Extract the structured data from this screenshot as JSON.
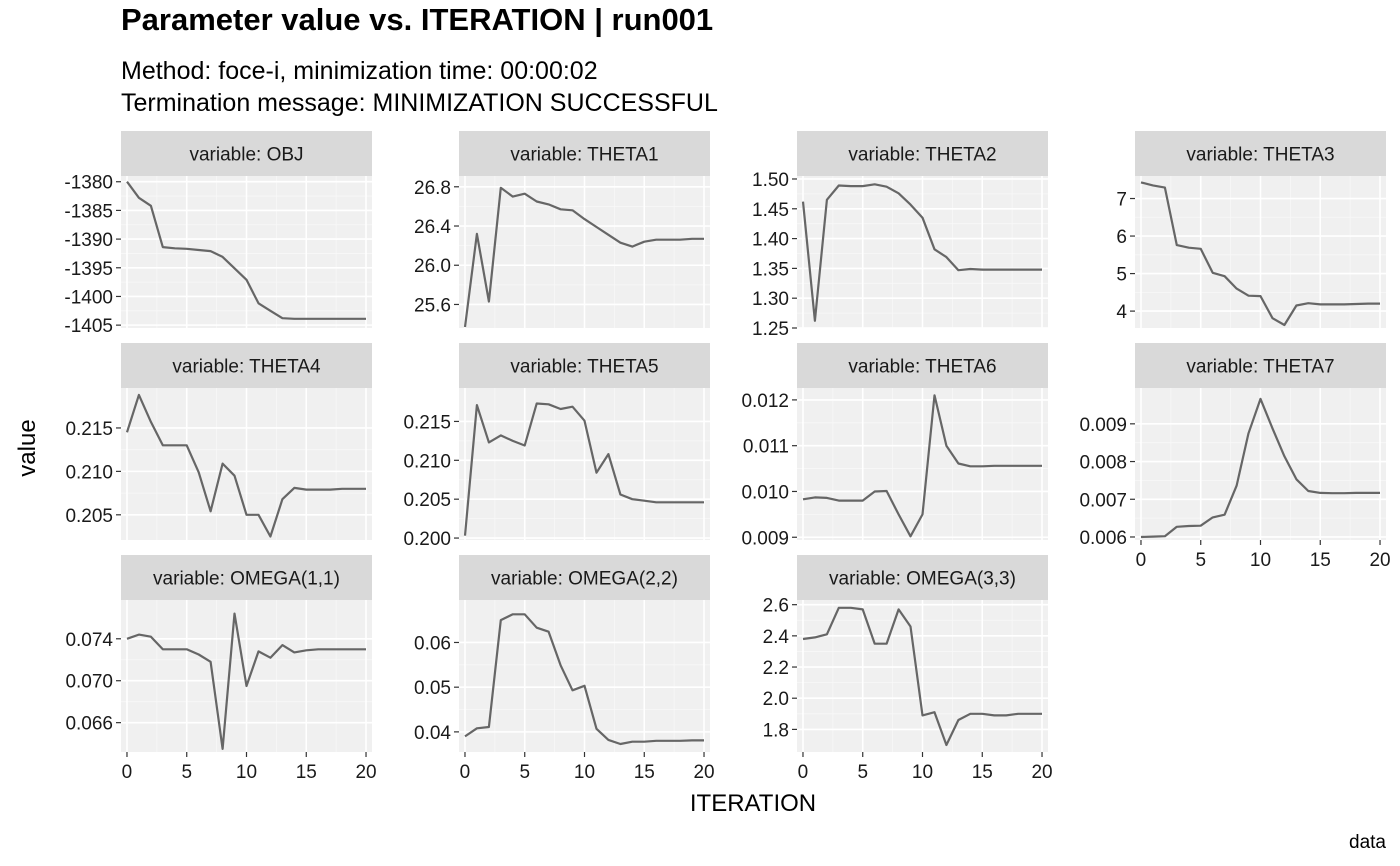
{
  "chart_data": {
    "type": "line",
    "title": "Parameter value vs. ITERATION | run001",
    "subtitle_lines": [
      "Method: foce-i, minimization time: 00:00:02",
      "Termination message: MINIMIZATION SUCCESSFUL"
    ],
    "xlabel": "ITERATION",
    "ylabel": "value",
    "caption": "data",
    "colors": {
      "line": "#666666",
      "panel_bg": "#f0f0f0",
      "strip_bg": "#d9d9d9",
      "grid_major": "#ffffff",
      "grid_minor": "#f8f8f8"
    },
    "grid": true,
    "x": [
      0,
      1,
      2,
      3,
      4,
      5,
      6,
      7,
      8,
      9,
      10,
      11,
      12,
      13,
      14,
      15,
      16,
      17,
      18,
      19,
      20
    ],
    "xticks": [
      0,
      5,
      10,
      15,
      20
    ],
    "xlim": [
      -0.5,
      20.5
    ],
    "panels": [
      {
        "strip": "variable: OBJ",
        "ylim": [
          -1405.5,
          -1379
        ],
        "yticks": [
          -1380,
          -1385,
          -1390,
          -1395,
          -1400,
          -1405
        ],
        "ytick_labels": [
          "-1380",
          "-1385",
          "-1390",
          "-1395",
          "-1400",
          "-1405"
        ],
        "values": [
          -1380,
          -1382.8,
          -1384.2,
          -1391.4,
          -1391.6,
          -1391.7,
          -1391.9,
          -1392.1,
          -1393.1,
          -1395.1,
          -1397.1,
          -1401.2,
          -1402.5,
          -1403.8,
          -1403.9,
          -1403.9,
          -1403.9,
          -1403.9,
          -1403.9,
          -1403.9,
          -1403.9
        ]
      },
      {
        "strip": "variable: THETA1",
        "ylim": [
          25.36,
          26.91
        ],
        "yticks": [
          25.6,
          26.0,
          26.4,
          26.8
        ],
        "ytick_labels": [
          "25.6",
          "26.0",
          "26.4",
          "26.8"
        ],
        "values": [
          25.37,
          26.32,
          25.63,
          26.79,
          26.7,
          26.73,
          26.65,
          26.62,
          26.57,
          26.56,
          26.47,
          26.39,
          26.31,
          26.23,
          26.19,
          26.24,
          26.26,
          26.26,
          26.26,
          26.27,
          26.27
        ]
      },
      {
        "strip": "variable: THETA2",
        "ylim": [
          1.25,
          1.505
        ],
        "yticks": [
          1.25,
          1.3,
          1.35,
          1.4,
          1.45,
          1.5
        ],
        "ytick_labels": [
          "1.25",
          "1.30",
          "1.35",
          "1.40",
          "1.45",
          "1.50"
        ],
        "values": [
          1.462,
          1.262,
          1.465,
          1.489,
          1.488,
          1.488,
          1.491,
          1.487,
          1.476,
          1.457,
          1.435,
          1.382,
          1.369,
          1.347,
          1.349,
          1.348,
          1.348,
          1.348,
          1.348,
          1.348,
          1.348
        ]
      },
      {
        "strip": "variable: THETA3",
        "ylim": [
          3.55,
          7.6
        ],
        "yticks": [
          4,
          5,
          6,
          7
        ],
        "ytick_labels": [
          "4",
          "5",
          "6",
          "7"
        ],
        "values": [
          7.43,
          7.35,
          7.29,
          5.76,
          5.69,
          5.66,
          5.02,
          4.93,
          4.6,
          4.41,
          4.4,
          3.81,
          3.63,
          4.15,
          4.21,
          4.18,
          4.18,
          4.18,
          4.19,
          4.2,
          4.2
        ]
      },
      {
        "strip": "variable: THETA4",
        "ylim": [
          0.2021,
          0.2196
        ],
        "yticks": [
          0.205,
          0.21,
          0.215
        ],
        "ytick_labels": [
          "0.205",
          "0.210",
          "0.215"
        ],
        "values": [
          0.2145,
          0.2188,
          0.2157,
          0.213,
          0.213,
          0.213,
          0.2099,
          0.2054,
          0.2109,
          0.2095,
          0.205,
          0.205,
          0.2025,
          0.2068,
          0.2081,
          0.2079,
          0.2079,
          0.2079,
          0.208,
          0.208,
          0.208
        ]
      },
      {
        "strip": "variable: THETA5",
        "ylim": [
          0.19975,
          0.2193
        ],
        "yticks": [
          0.2,
          0.205,
          0.21,
          0.215
        ],
        "ytick_labels": [
          "0.200",
          "0.205",
          "0.210",
          "0.215"
        ],
        "values": [
          0.2003,
          0.2171,
          0.2123,
          0.2132,
          0.2125,
          0.2119,
          0.2173,
          0.2172,
          0.2166,
          0.2169,
          0.2151,
          0.2084,
          0.2108,
          0.2056,
          0.205,
          0.2048,
          0.2046,
          0.2046,
          0.2046,
          0.2046,
          0.2046
        ]
      },
      {
        "strip": "variable: THETA6",
        "ylim": [
          0.00894,
          0.01226
        ],
        "yticks": [
          0.009,
          0.01,
          0.011,
          0.012
        ],
        "ytick_labels": [
          "0.009",
          "0.010",
          "0.011",
          "0.012"
        ],
        "values": [
          0.00983,
          0.00987,
          0.00986,
          0.0098,
          0.0098,
          0.0098,
          0.01,
          0.01001,
          0.0095,
          0.00902,
          0.0095,
          0.0121,
          0.011,
          0.01061,
          0.01055,
          0.01055,
          0.01056,
          0.01056,
          0.01056,
          0.01056,
          0.01056
        ]
      },
      {
        "strip": "variable: THETA7",
        "ylim": [
          0.00592,
          0.00995
        ],
        "yticks": [
          0.006,
          0.007,
          0.008,
          0.009
        ],
        "ytick_labels": [
          "0.006",
          "0.007",
          "0.008",
          "0.009"
        ],
        "values": [
          0.006,
          0.00601,
          0.00602,
          0.00627,
          0.00629,
          0.0063,
          0.00652,
          0.00659,
          0.00736,
          0.00875,
          0.00966,
          0.00888,
          0.00814,
          0.00753,
          0.00722,
          0.00717,
          0.00716,
          0.00716,
          0.00717,
          0.00717,
          0.00717
        ]
      },
      {
        "strip": "variable: OMEGA(1,1)",
        "ylim": [
          0.0632,
          0.0777
        ],
        "yticks": [
          0.066,
          0.07,
          0.074
        ],
        "ytick_labels": [
          "0.066",
          "0.070",
          "0.074"
        ],
        "values": [
          0.074,
          0.0744,
          0.0742,
          0.073,
          0.073,
          0.073,
          0.0725,
          0.0718,
          0.0635,
          0.0764,
          0.0695,
          0.0728,
          0.0722,
          0.0734,
          0.0727,
          0.0729,
          0.073,
          0.073,
          0.073,
          0.073,
          0.073
        ]
      },
      {
        "strip": "variable: OMEGA(2,2)",
        "ylim": [
          0.0355,
          0.0695
        ],
        "yticks": [
          0.04,
          0.05,
          0.06
        ],
        "ytick_labels": [
          "0.04",
          "0.05",
          "0.06"
        ],
        "values": [
          0.039,
          0.0408,
          0.0411,
          0.065,
          0.0663,
          0.0663,
          0.0633,
          0.0624,
          0.0549,
          0.0493,
          0.0503,
          0.0407,
          0.0382,
          0.0373,
          0.0378,
          0.0378,
          0.038,
          0.038,
          0.038,
          0.0381,
          0.0381
        ]
      },
      {
        "strip": "variable: OMEGA(3,3)",
        "ylim": [
          1.655,
          2.63
        ],
        "yticks": [
          1.8,
          2.0,
          2.2,
          2.4,
          2.6
        ],
        "ytick_labels": [
          "1.8",
          "2.0",
          "2.2",
          "2.4",
          "2.6"
        ],
        "values": [
          2.38,
          2.39,
          2.41,
          2.58,
          2.58,
          2.57,
          2.35,
          2.35,
          2.57,
          2.46,
          1.89,
          1.91,
          1.7,
          1.86,
          1.9,
          1.9,
          1.89,
          1.89,
          1.9,
          1.9,
          1.9
        ]
      }
    ]
  }
}
